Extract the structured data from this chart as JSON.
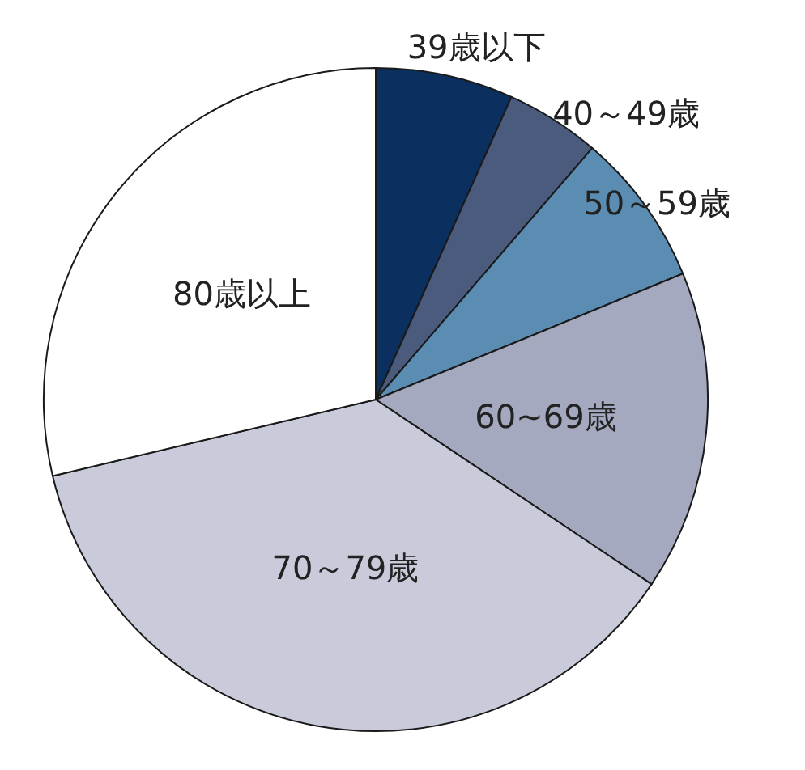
{
  "chart_data": {
    "type": "pie",
    "categories": [
      "39歳以下",
      "40～49歳",
      "50～59歳",
      "60~69歳",
      "70～79歳",
      "80歳以上"
    ],
    "values": [
      6.7,
      4.6,
      7.5,
      15.6,
      36.9,
      28.7
    ],
    "colors": [
      "#0b2f5f",
      "#4a5b7d",
      "#5b8db3",
      "#a5a9bf",
      "#c9cbdb",
      "#ffffff"
    ],
    "legend": false
  }
}
